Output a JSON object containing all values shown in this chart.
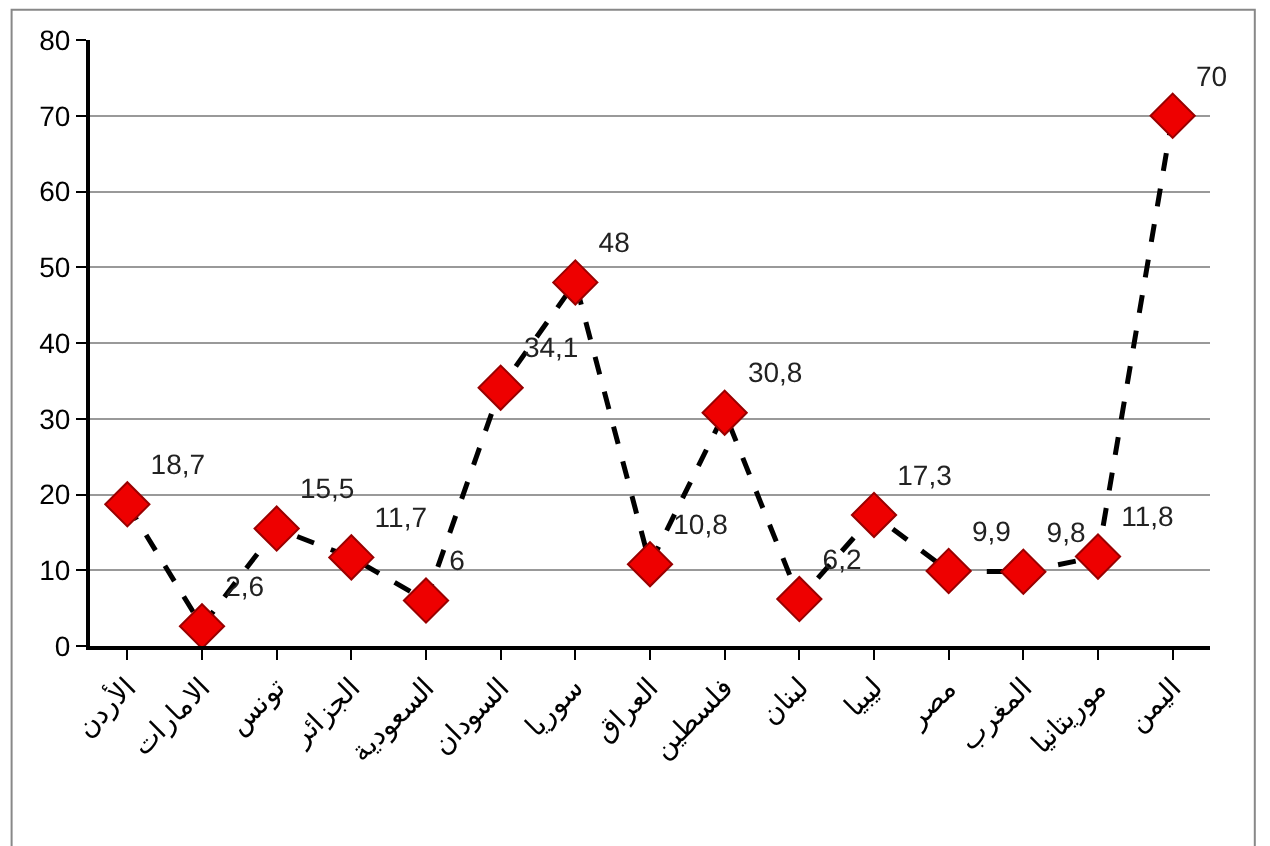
{
  "chart_data": {
    "type": "line",
    "categories": [
      "الأردن",
      "الامارات",
      "تونس",
      "الجزائر",
      "السعودية",
      "السودان",
      "سوريا",
      "العراق",
      "فلسطين",
      "لبنان",
      "ليبيا",
      "مصر",
      "المغرب",
      "موريتانيا",
      "اليمن"
    ],
    "series": [
      {
        "color": "#000000",
        "colors": [
          "#ee0000",
          "#ee0000",
          "#ee0000",
          "#ee0000",
          "#ee0000",
          "#ee0000",
          "#ee0000",
          "#ee0000",
          "#ee0000",
          "#ee0000",
          "#ee0000",
          "#ee0000",
          "#ee0000",
          "#ee0000",
          "#ee0000"
        ],
        "values": [
          18.7,
          2.6,
          15.5,
          11.7,
          6,
          34.1,
          48,
          10.8,
          30.8,
          6.2,
          17.3,
          9.9,
          9.8,
          11.8,
          70
        ],
        "value_labels": [
          "18,7",
          "2,6",
          "15,5",
          "11,7",
          "6",
          "34,1",
          "48",
          "10,8",
          "30,8",
          "6,2",
          "17,3",
          "9,9",
          "9,8",
          "11,8",
          "70"
        ]
      }
    ],
    "ylim": [
      0,
      80
    ],
    "yticks": [
      0,
      10,
      20,
      30,
      40,
      50,
      60,
      70,
      80
    ],
    "grid": "y",
    "marker": "diamond",
    "line_style": "dashed",
    "legend": false
  }
}
